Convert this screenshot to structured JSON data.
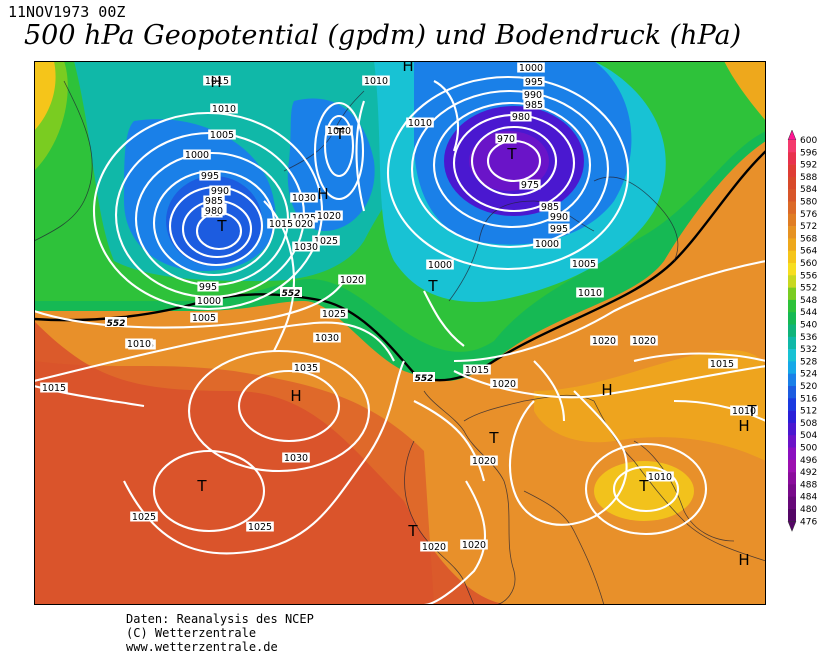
{
  "header": {
    "date": "11NOV1973 00Z",
    "title": "500 hPa Geopotential (gpdm) und Bodendruck (hPa)"
  },
  "colorbar": {
    "levels": [
      600,
      596,
      592,
      588,
      584,
      580,
      576,
      572,
      568,
      564,
      560,
      556,
      552,
      548,
      544,
      540,
      536,
      532,
      528,
      524,
      520,
      516,
      512,
      508,
      504,
      500,
      496,
      492,
      488,
      484,
      480,
      476
    ],
    "colors": [
      "#ff1493",
      "#f43a6c",
      "#e8324d",
      "#df3d35",
      "#d84a2a",
      "#d8562a",
      "#dc6a28",
      "#e07d24",
      "#e69222",
      "#eea81c",
      "#f5c51a",
      "#f7de21",
      "#c8d821",
      "#7acc21",
      "#2ec23a",
      "#16b954",
      "#10b47a",
      "#10b8a8",
      "#18c2d4",
      "#16a8e8",
      "#1a80e8",
      "#1c5ce0",
      "#1a3ae0",
      "#2a20d8",
      "#4a18d0",
      "#6a14c8",
      "#8a10c0",
      "#9c10b0",
      "#8a0c9c",
      "#780a8a",
      "#660878",
      "#540666"
    ]
  },
  "map": {
    "contour_labels": [
      "1015",
      "1010",
      "1005",
      "1000",
      "995",
      "990",
      "985",
      "980",
      "975",
      "1030",
      "1025",
      "1020",
      "1015",
      "1020",
      "1025",
      "1030",
      "1040",
      "1010",
      "1010",
      "1000",
      "995",
      "990",
      "985",
      "980",
      "970",
      "975",
      "985",
      "990",
      "995",
      "1000",
      "1005",
      "1000",
      "1010",
      "1020",
      "1025",
      "1030",
      "1035",
      "1030",
      "1025",
      "1025",
      "1015",
      "1020",
      "1020",
      "1020",
      "1020",
      "1015",
      "1010",
      "1010",
      "1020",
      "1010",
      "1005",
      "1000",
      "995",
      "985",
      "980",
      "1010",
      "1020",
      "1015",
      "1015"
    ],
    "geopotential_labels": [
      "552",
      "552",
      "552"
    ],
    "highs": [
      "H",
      "H",
      "H",
      "H",
      "H",
      "H",
      "H"
    ],
    "lows": [
      "T",
      "T",
      "T",
      "T",
      "T",
      "T",
      "T",
      "T",
      "T"
    ]
  },
  "credits": {
    "line1": "Daten: Reanalysis des NCEP",
    "line2": "(C) Wetterzentrale",
    "line3": "www.wetterzentrale.de"
  }
}
